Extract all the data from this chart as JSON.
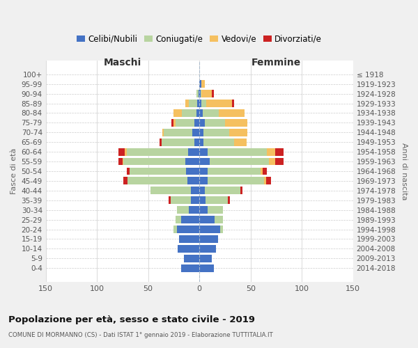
{
  "age_groups": [
    "0-4",
    "5-9",
    "10-14",
    "15-19",
    "20-24",
    "25-29",
    "30-34",
    "35-39",
    "40-44",
    "45-49",
    "50-54",
    "55-59",
    "60-64",
    "65-69",
    "70-74",
    "75-79",
    "80-84",
    "85-89",
    "90-94",
    "95-99",
    "100+"
  ],
  "birth_years": [
    "2014-2018",
    "2009-2013",
    "2004-2008",
    "1999-2003",
    "1994-1998",
    "1989-1993",
    "1984-1988",
    "1979-1983",
    "1974-1978",
    "1969-1973",
    "1964-1968",
    "1959-1963",
    "1954-1958",
    "1949-1953",
    "1944-1948",
    "1939-1943",
    "1934-1938",
    "1929-1933",
    "1924-1928",
    "1919-1923",
    "≤ 1918"
  ],
  "male": {
    "celibi": [
      18,
      15,
      21,
      20,
      22,
      18,
      10,
      8,
      8,
      12,
      13,
      14,
      11,
      5,
      7,
      5,
      3,
      2,
      1,
      0,
      0
    ],
    "coniugati": [
      0,
      0,
      0,
      0,
      3,
      5,
      12,
      20,
      40,
      58,
      55,
      60,
      60,
      32,
      28,
      18,
      14,
      8,
      2,
      0,
      0
    ],
    "vedovi": [
      0,
      0,
      0,
      0,
      0,
      0,
      0,
      0,
      0,
      0,
      0,
      1,
      2,
      0,
      1,
      2,
      8,
      4,
      0,
      0,
      0
    ],
    "divorziati": [
      0,
      0,
      0,
      0,
      0,
      0,
      0,
      2,
      0,
      4,
      3,
      4,
      6,
      2,
      0,
      2,
      0,
      0,
      0,
      0,
      0
    ]
  },
  "female": {
    "nubili": [
      14,
      12,
      16,
      18,
      20,
      15,
      8,
      6,
      5,
      8,
      8,
      10,
      8,
      4,
      4,
      5,
      3,
      2,
      1,
      2,
      0
    ],
    "coniugate": [
      0,
      0,
      0,
      0,
      3,
      8,
      15,
      22,
      35,
      55,
      52,
      58,
      58,
      30,
      25,
      20,
      16,
      5,
      1,
      0,
      0
    ],
    "vedove": [
      0,
      0,
      0,
      0,
      0,
      0,
      0,
      0,
      0,
      2,
      2,
      6,
      8,
      12,
      18,
      22,
      25,
      25,
      10,
      3,
      0
    ],
    "divorziate": [
      0,
      0,
      0,
      0,
      0,
      0,
      0,
      2,
      2,
      5,
      4,
      8,
      8,
      0,
      0,
      0,
      0,
      2,
      2,
      0,
      0
    ]
  },
  "colors": {
    "celibi": "#4472c4",
    "coniugati": "#b8d4a0",
    "vedovi": "#f5c060",
    "divorziati": "#cc2222"
  },
  "xlim": 150,
  "title": "Popolazione per età, sesso e stato civile - 2019",
  "subtitle": "COMUNE DI MORMANNO (CS) - Dati ISTAT 1° gennaio 2019 - Elaborazione TUTTITALIA.IT",
  "xlabel_left": "Maschi",
  "xlabel_right": "Femmine",
  "ylabel_left": "Fasce di età",
  "ylabel_right": "Anni di nascita",
  "legend_labels": [
    "Celibi/Nubili",
    "Coniugati/e",
    "Vedovi/e",
    "Divorziati/e"
  ],
  "bg_color": "#f0f0f0",
  "plot_bg": "#ffffff"
}
